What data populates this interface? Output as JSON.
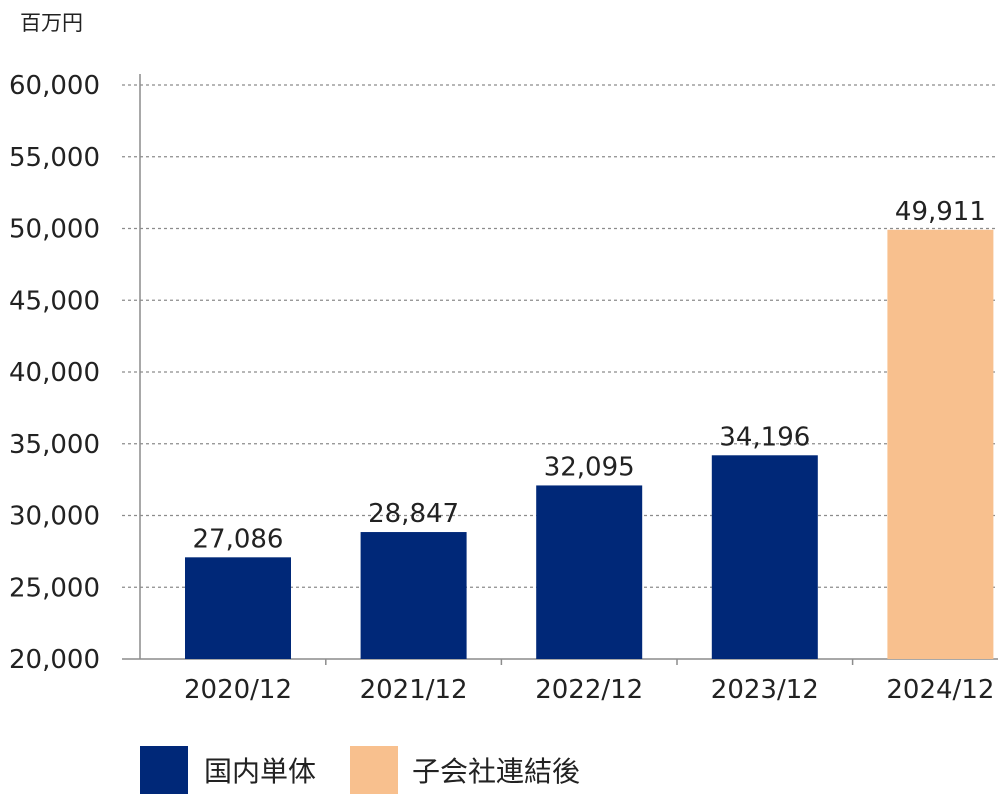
{
  "chart_data": {
    "type": "bar",
    "unit_label": "百万円",
    "categories": [
      "2020/12",
      "2021/12",
      "2022/12",
      "2023/12",
      "2024/12"
    ],
    "values": [
      27086,
      28847,
      32095,
      34196,
      49911
    ],
    "value_labels": [
      "27,086",
      "28,847",
      "32,095",
      "34,196",
      "49,911"
    ],
    "bar_series_index": [
      0,
      0,
      0,
      0,
      1
    ],
    "series": [
      {
        "name": "国内単体",
        "color": "#002878"
      },
      {
        "name": "子会社連結後",
        "color": "#F8C08E"
      }
    ],
    "ylim": [
      20000,
      60000
    ],
    "yticks": [
      20000,
      25000,
      30000,
      35000,
      40000,
      45000,
      50000,
      55000,
      60000
    ],
    "ytick_labels": [
      "20,000",
      "25,000",
      "30,000",
      "35,000",
      "40,000",
      "45,000",
      "50,000",
      "55,000",
      "60,000"
    ],
    "grid": true,
    "legend_position": "bottom-left"
  }
}
